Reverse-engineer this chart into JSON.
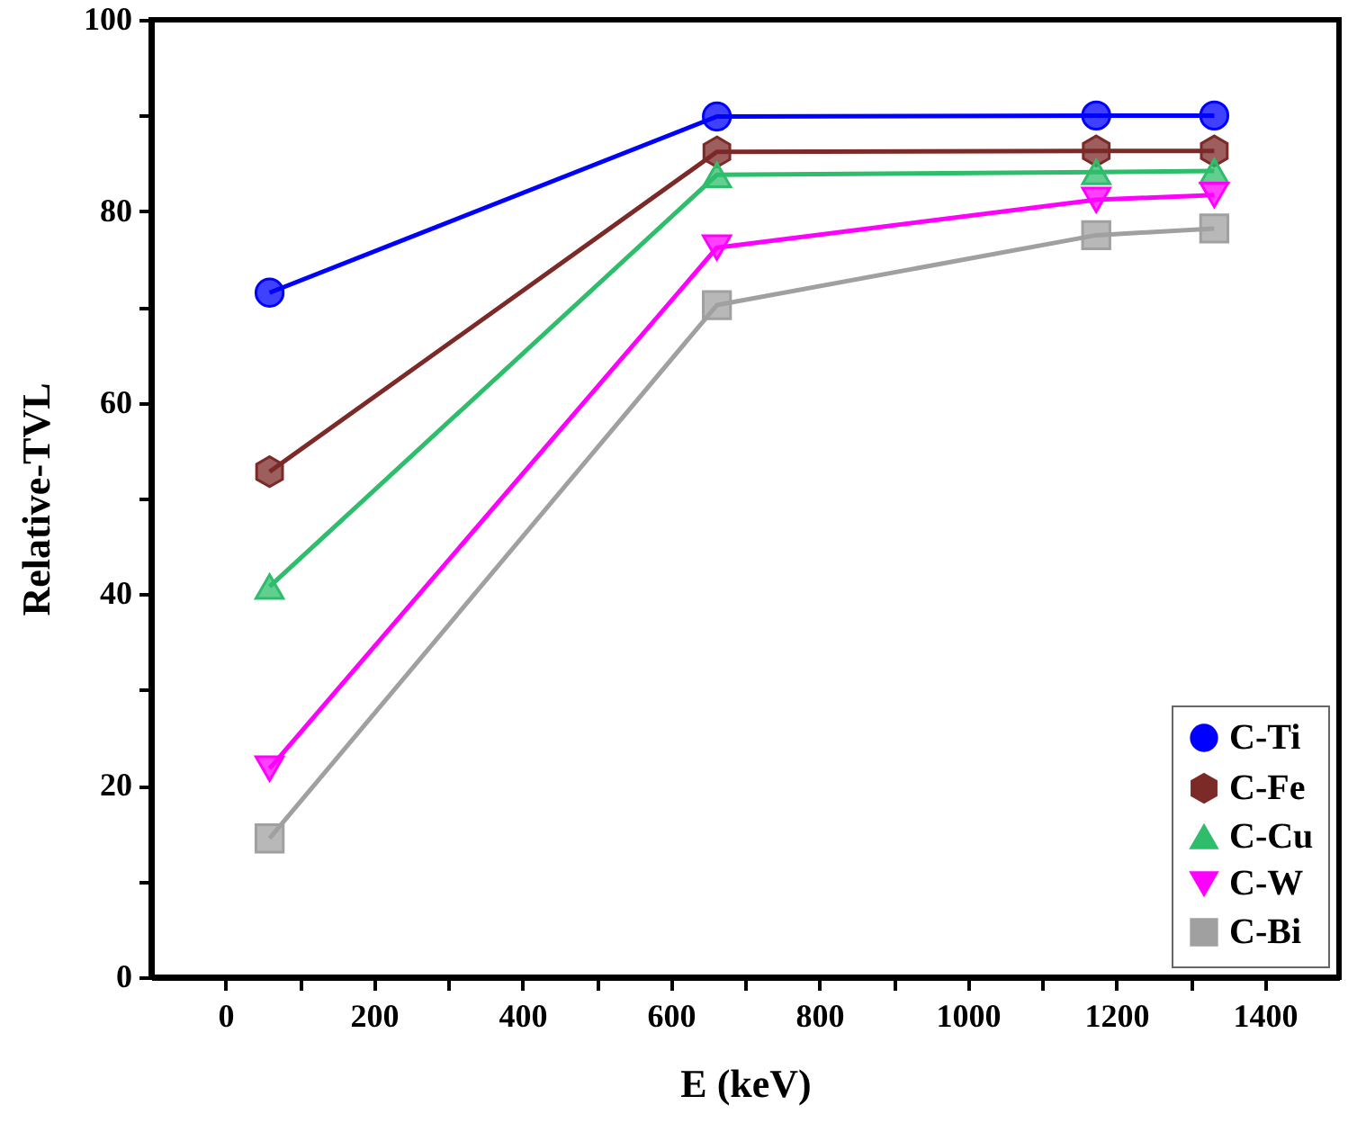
{
  "chart_data": {
    "type": "line",
    "xlabel": "E (keV)",
    "ylabel": "Relative-TVL",
    "x": [
      59.5,
      662,
      1173,
      1332
    ],
    "series": [
      {
        "name": "C-Ti",
        "color": "#0000ff",
        "marker": "circle",
        "values": [
          71.5,
          89.9,
          90,
          90
        ]
      },
      {
        "name": "C-Fe",
        "color": "#7b2a28",
        "marker": "circle",
        "values": [
          52.8,
          86.2,
          86.3,
          86.3
        ]
      },
      {
        "name": "C-Cu",
        "color": "#2ebd6b",
        "marker": "triangle",
        "values": [
          40.8,
          83.8,
          84.1,
          84.2
        ]
      },
      {
        "name": "C-W",
        "color": "#ff00ff",
        "marker": "triangle",
        "values": [
          21.8,
          76.2,
          81.2,
          81.7
        ]
      },
      {
        "name": "C-Bi",
        "color": "#a0a0a0",
        "marker": "square",
        "values": [
          14.5,
          70.2,
          77.5,
          78.2
        ]
      }
    ],
    "xlim": [
      -100,
      1500
    ],
    "xticks": [
      0,
      {
        "value": 100,
        "label": null
      },
      200,
      {
        "value": 300,
        "label": null
      },
      400,
      {
        "value": 500,
        "label": null
      },
      600,
      {
        "value": 700,
        "label": null
      },
      800,
      {
        "value": 900,
        "label": null
      },
      1000,
      {
        "value": 1100,
        "label": null
      },
      1200,
      {
        "value": 1300,
        "label": null
      },
      1400
    ],
    "ylim": [
      0,
      100
    ],
    "yticks": [
      0,
      {
        "value": 10,
        "label": null
      },
      20,
      {
        "value": 30,
        "label": null
      },
      40,
      {
        "value": 50,
        "label": null
      },
      60,
      {
        "value": 70,
        "label": null
      },
      80,
      {
        "value": 90,
        "label": null
      },
      100
    ],
    "grid": false,
    "legend": "bottom right",
    "line_style": "solid"
  }
}
